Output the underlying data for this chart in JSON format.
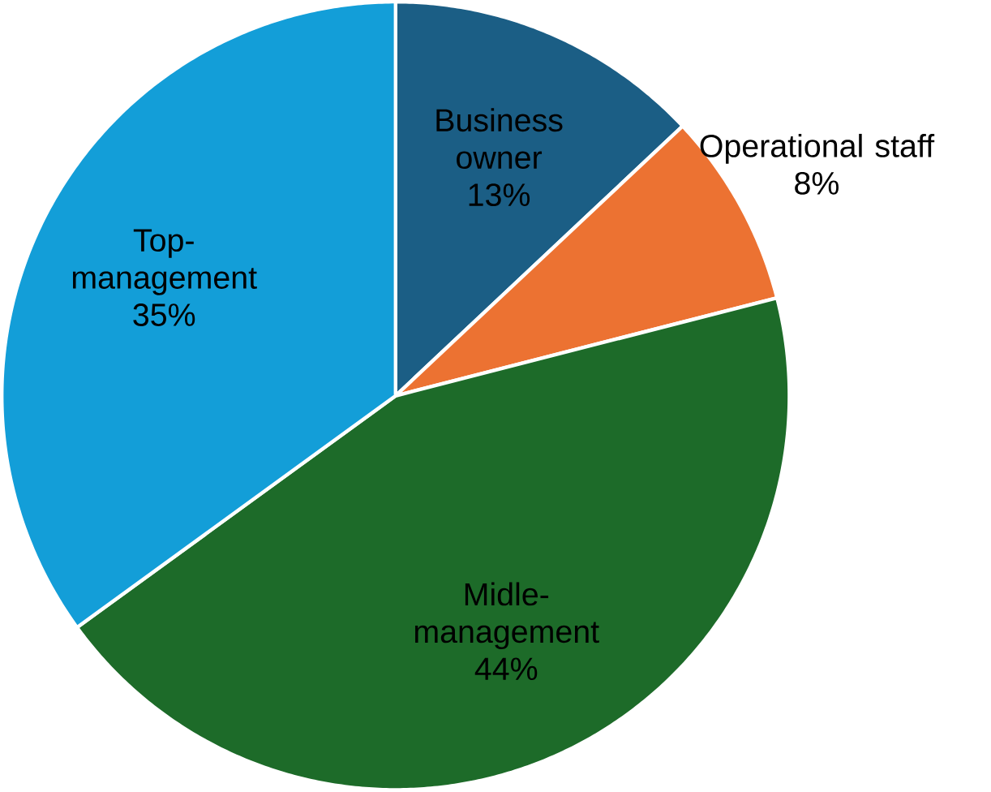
{
  "chart_data": {
    "type": "pie",
    "categories": [
      "Business owner",
      "Operational staff",
      "Midle-management",
      "Top-management"
    ],
    "values": [
      13,
      8,
      44,
      35
    ],
    "value_labels": [
      "13%",
      "8%",
      "44%",
      "35%"
    ],
    "colors": [
      "#1b5e85",
      "#ec7232",
      "#1d6b29",
      "#139ed8"
    ]
  }
}
